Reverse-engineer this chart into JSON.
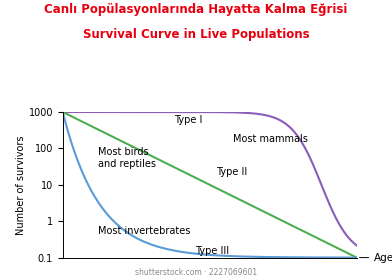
{
  "title_line1": "Canlı Popülasyonlarında Hayatta Kalma Eğrisi",
  "title_line2": "Survival Curve in Live Populations",
  "title_color": "#e8000e",
  "xlabel": "Age",
  "ylabel": "Number of survivors",
  "type1_color": "#8b5cba",
  "type2_color": "#4caf50",
  "type3_color": "#5b9bd5",
  "type1_label": "Type I",
  "type2_label": "Type II",
  "type3_label": "Type III",
  "annotation_mammals": "Most mammals",
  "annotation_birds": "Most birds\nand reptiles",
  "annotation_invertebrates": "Most invertebrates",
  "watermark": "shutterstock.com · 2227069601",
  "background_color": "#ffffff",
  "line_width": 1.5,
  "annotation_fontsize": 7.0,
  "title_fontsize1": 8.5,
  "title_fontsize2": 8.5,
  "yticks": [
    0.1,
    1,
    10,
    100,
    1000
  ],
  "ytick_labels": [
    "0.1",
    "1",
    "10",
    "100",
    "1000"
  ],
  "ylim": [
    0.1,
    1000
  ],
  "xlim": [
    0,
    1
  ]
}
